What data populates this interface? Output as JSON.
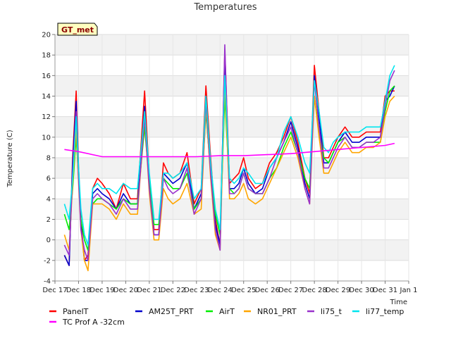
{
  "chart_data": {
    "type": "line",
    "title": "Temperatures",
    "xlabel": "Time",
    "ylabel": "Temperature (C)",
    "badge": "GT_met",
    "ylim": [
      -4,
      20
    ],
    "yticks": [
      -4,
      -2,
      0,
      2,
      4,
      6,
      8,
      10,
      12,
      14,
      16,
      18,
      20
    ],
    "xlim": [
      0,
      15
    ],
    "xticks": [
      0,
      1,
      2,
      3,
      4,
      5,
      6,
      7,
      8,
      9,
      10,
      11,
      12,
      13,
      14,
      15
    ],
    "xtick_labels": [
      "Dec 17",
      "Dec 18",
      "Dec 19",
      "Dec 20",
      "Dec 21",
      "Dec 22",
      "Dec 23",
      "Dec 24",
      "Dec 25",
      "Dec 26",
      "Dec 27",
      "Dec 28",
      "Dec 29",
      "Dec 30",
      "Dec 31",
      "Jan 1"
    ],
    "grid": true,
    "legend_position": "bottom",
    "base_x": [
      0.4,
      0.6,
      0.75,
      0.9,
      1.0,
      1.1,
      1.25,
      1.4,
      1.6,
      1.8,
      2.0,
      2.3,
      2.6,
      2.9,
      3.2,
      3.5,
      3.8,
      4.0,
      4.2,
      4.4,
      4.6,
      4.8,
      5.0,
      5.3,
      5.6,
      5.9,
      6.2,
      6.4,
      6.6,
      6.8,
      7.0,
      7.2,
      7.4,
      7.6,
      7.8,
      8.0,
      8.2,
      8.5,
      8.8,
      9.1,
      9.4,
      9.7,
      10.0,
      10.3,
      10.6,
      10.8,
      11.0,
      11.2,
      11.4,
      11.6,
      11.8,
      12.0,
      12.3,
      12.6,
      12.9,
      13.2,
      13.5,
      13.8,
      14.0,
      14.2,
      14.4
    ],
    "series": [
      {
        "name": "PanelT",
        "color": "#ff0000",
        "values": [
          -1.5,
          -2.5,
          8.0,
          14.5,
          7.0,
          2.0,
          -2.0,
          -1.5,
          5.0,
          6.0,
          5.5,
          4.5,
          3.0,
          5.5,
          4.0,
          4.0,
          14.5,
          6.0,
          1.0,
          1.0,
          7.5,
          6.5,
          6.0,
          6.5,
          8.5,
          3.5,
          5.0,
          15.0,
          8.0,
          2.0,
          -0.5,
          18.5,
          5.5,
          6.0,
          6.5,
          8.0,
          6.0,
          5.0,
          5.5,
          7.5,
          8.5,
          10.0,
          12.0,
          9.5,
          6.0,
          4.5,
          17.0,
          12.5,
          8.0,
          8.0,
          9.0,
          10.0,
          11.0,
          10.0,
          10.0,
          10.5,
          10.5,
          10.5,
          14.0,
          14.5,
          14.5
        ]
      },
      {
        "name": "AM25T_PRT",
        "color": "#0000cc",
        "values": [
          -1.5,
          -2.5,
          7.5,
          13.5,
          6.5,
          1.5,
          -2.0,
          -2.0,
          4.5,
          5.0,
          4.5,
          4.0,
          3.0,
          4.5,
          3.5,
          3.5,
          13.0,
          5.0,
          0.5,
          0.5,
          6.5,
          6.0,
          5.5,
          6.0,
          7.5,
          3.0,
          4.5,
          14.0,
          7.0,
          1.5,
          -0.5,
          17.0,
          5.0,
          5.0,
          5.5,
          7.0,
          5.5,
          4.5,
          5.0,
          7.0,
          8.0,
          9.5,
          11.5,
          9.0,
          5.5,
          4.0,
          16.0,
          12.0,
          7.5,
          7.5,
          8.5,
          9.5,
          10.5,
          9.5,
          9.5,
          10.0,
          10.0,
          10.0,
          13.5,
          14.0,
          15.0
        ]
      },
      {
        "name": "AirT",
        "color": "#00ee00",
        "values": [
          2.5,
          1.0,
          5.0,
          10.0,
          6.0,
          2.0,
          0.0,
          -1.0,
          3.5,
          4.0,
          4.0,
          3.5,
          3.0,
          4.0,
          3.5,
          3.5,
          11.0,
          5.5,
          1.5,
          1.5,
          6.0,
          5.5,
          5.0,
          5.0,
          6.5,
          3.0,
          4.0,
          12.5,
          6.5,
          2.5,
          0.5,
          14.0,
          5.0,
          4.5,
          5.0,
          6.5,
          5.0,
          4.5,
          4.5,
          6.0,
          7.0,
          9.0,
          10.5,
          8.5,
          6.0,
          5.0,
          14.0,
          10.5,
          8.0,
          7.5,
          8.5,
          9.5,
          10.0,
          9.0,
          9.0,
          9.5,
          9.5,
          9.5,
          12.5,
          14.5,
          15.0
        ]
      },
      {
        "name": "NR01_PRT",
        "color": "#ffa500",
        "values": [
          0.5,
          -1.0,
          5.5,
          11.0,
          5.5,
          1.0,
          -2.0,
          -3.0,
          3.5,
          3.5,
          3.5,
          3.0,
          2.0,
          3.5,
          2.5,
          2.5,
          12.0,
          4.5,
          0.0,
          0.0,
          5.0,
          4.0,
          3.5,
          4.0,
          5.5,
          2.5,
          3.0,
          13.0,
          6.0,
          0.5,
          -1.0,
          15.5,
          4.0,
          4.0,
          4.5,
          5.5,
          4.0,
          3.5,
          4.0,
          5.5,
          7.0,
          8.5,
          10.0,
          8.0,
          5.0,
          3.5,
          14.0,
          10.0,
          6.5,
          6.5,
          7.5,
          8.5,
          9.5,
          8.5,
          8.5,
          9.0,
          9.0,
          9.5,
          12.0,
          13.5,
          14.0
        ]
      },
      {
        "name": "li75_t",
        "color": "#9932cc",
        "values": [
          -0.5,
          -1.5,
          6.5,
          12.5,
          6.0,
          1.0,
          -1.0,
          -2.0,
          4.0,
          4.5,
          4.0,
          3.5,
          2.5,
          4.0,
          3.0,
          3.0,
          12.0,
          5.0,
          0.5,
          0.5,
          6.0,
          5.0,
          4.5,
          5.0,
          7.0,
          2.5,
          4.0,
          13.5,
          6.5,
          1.0,
          -1.0,
          19.0,
          4.5,
          4.5,
          5.0,
          6.5,
          5.0,
          4.5,
          4.5,
          6.0,
          8.0,
          9.5,
          11.0,
          8.5,
          5.0,
          3.5,
          15.5,
          11.0,
          7.0,
          7.0,
          8.0,
          9.0,
          10.0,
          9.0,
          9.0,
          9.5,
          9.5,
          10.0,
          13.0,
          15.5,
          16.5
        ]
      },
      {
        "name": "li77_temp",
        "color": "#00e5ee",
        "values": [
          3.5,
          2.0,
          6.0,
          12.0,
          7.0,
          3.0,
          0.5,
          -0.5,
          5.0,
          5.5,
          5.0,
          5.0,
          4.5,
          5.5,
          5.0,
          5.0,
          12.5,
          6.5,
          2.0,
          2.0,
          6.5,
          6.5,
          6.0,
          6.5,
          7.5,
          4.0,
          5.0,
          14.0,
          7.5,
          3.0,
          1.0,
          16.0,
          6.0,
          5.5,
          6.0,
          7.0,
          6.5,
          5.5,
          5.5,
          7.0,
          8.0,
          10.5,
          12.0,
          10.0,
          7.5,
          6.5,
          15.5,
          12.5,
          9.0,
          8.5,
          9.5,
          10.0,
          10.5,
          10.5,
          10.5,
          11.0,
          11.0,
          11.0,
          13.5,
          16.0,
          17.0
        ]
      },
      {
        "name": "TC Prof A -32cm",
        "color": "#ff00ff",
        "x": [
          0.4,
          1.0,
          2.0,
          3.0,
          4.0,
          5.0,
          6.0,
          7.0,
          8.0,
          9.0,
          10.0,
          11.0,
          12.0,
          13.0,
          14.0,
          14.4
        ],
        "values": [
          8.8,
          8.6,
          8.1,
          8.1,
          8.1,
          8.1,
          8.1,
          8.2,
          8.2,
          8.3,
          8.4,
          8.6,
          8.8,
          9.0,
          9.2,
          9.4
        ]
      }
    ]
  }
}
